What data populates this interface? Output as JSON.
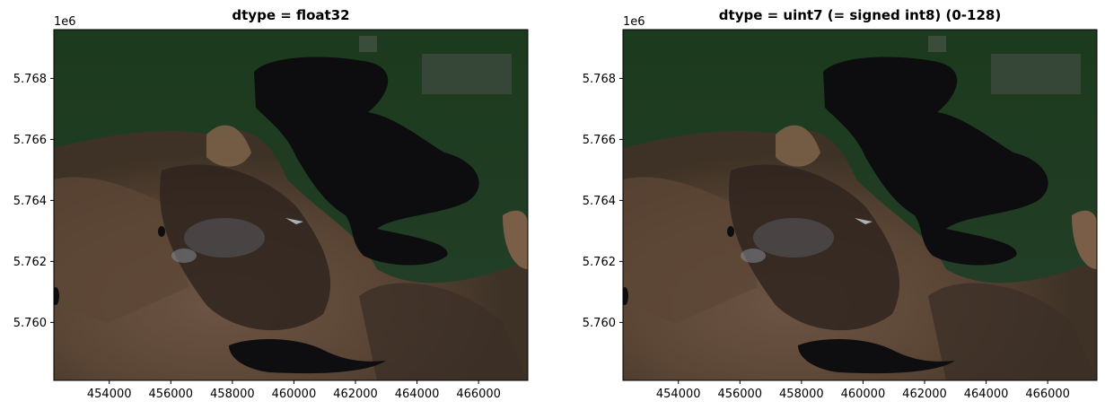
{
  "figure": {
    "background": "#ffffff"
  },
  "chart_data": [
    {
      "type": "image",
      "title": "dtype = float32",
      "xlim": [
        452200,
        467600
      ],
      "ylim": [
        5758100,
        5769600
      ],
      "xticks": [
        454000,
        456000,
        458000,
        460000,
        462000,
        464000,
        466000
      ],
      "xtick_labels": [
        "454000",
        "456000",
        "458000",
        "460000",
        "462000",
        "464000",
        "466000"
      ],
      "yticks": [
        5760000,
        5762000,
        5764000,
        5766000,
        5768000
      ],
      "ytick_labels": [
        "5.760",
        "5.762",
        "5.764",
        "5.766",
        "5.768"
      ],
      "y_offset_label": "1e6",
      "image_description": "true-color satellite image: dark lake, green fields, brown moorland",
      "colors": {
        "water": "#0d0c0e",
        "field": "#1f3a1f",
        "moor": "#6b5240",
        "dark_moor": "#2e241f"
      }
    },
    {
      "type": "image",
      "title": "dtype = uint7 (= signed int8) (0-128)",
      "xlim": [
        452200,
        467600
      ],
      "ylim": [
        5758100,
        5769600
      ],
      "xticks": [
        454000,
        456000,
        458000,
        460000,
        462000,
        464000,
        466000
      ],
      "xtick_labels": [
        "454000",
        "456000",
        "458000",
        "460000",
        "462000",
        "464000",
        "466000"
      ],
      "yticks": [
        5760000,
        5762000,
        5764000,
        5766000,
        5768000
      ],
      "ytick_labels": [
        "5.760",
        "5.762",
        "5.764",
        "5.766",
        "5.768"
      ],
      "y_offset_label": "1e6",
      "image_description": "true-color satellite image: dark lake, green fields, brown moorland",
      "colors": {
        "water": "#0d0c0e",
        "field": "#1f3a1f",
        "moor": "#6b5240",
        "dark_moor": "#2e241f"
      }
    }
  ]
}
